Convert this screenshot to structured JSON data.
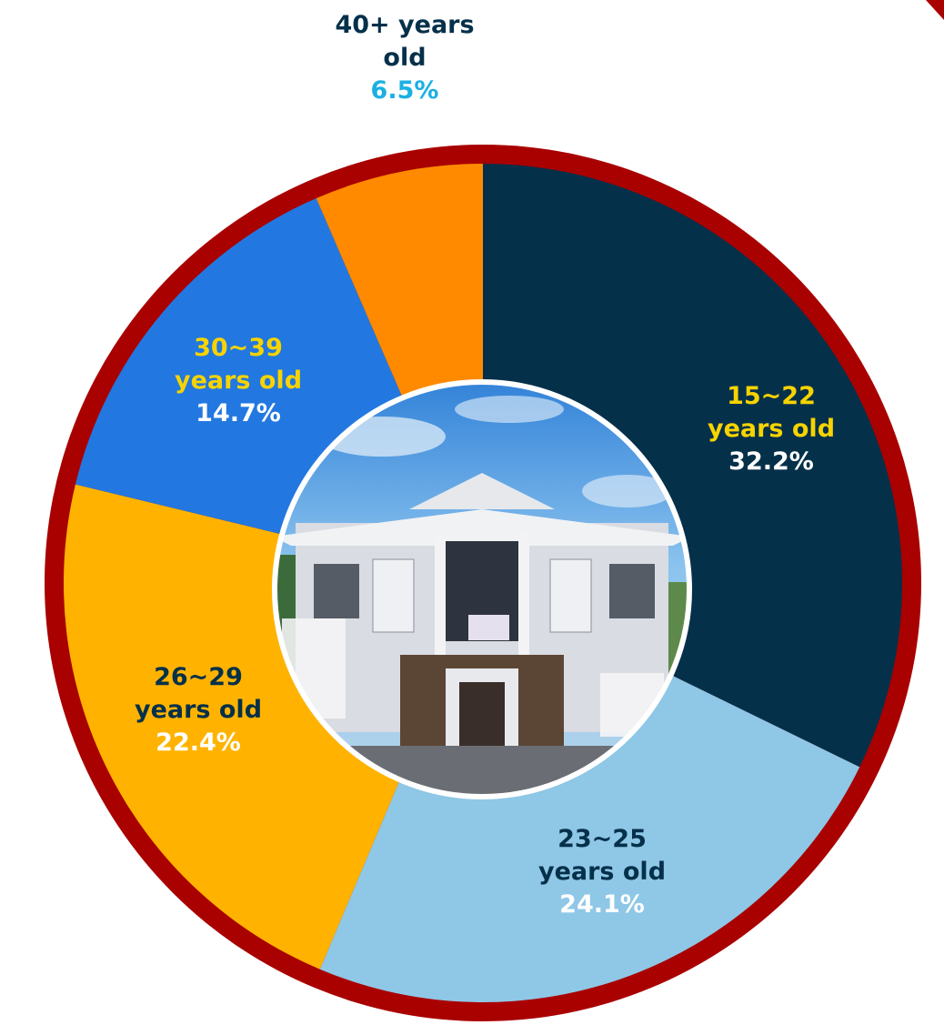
{
  "chart_data": {
    "type": "pie",
    "categories": [
      "15~22 years old",
      "23~25 years old",
      "26~29 years old",
      "30~39 years old",
      "40+ years old"
    ],
    "values": [
      32.2,
      24.1,
      22.4,
      14.7,
      6.5
    ],
    "value_labels": [
      "32.2%",
      "24.1%",
      "22.4%",
      "14.7%",
      "6.5%"
    ],
    "colors": [
      "#05304a",
      "#8fc7e6",
      "#ffb300",
      "#2278e0",
      "#ff8a00"
    ],
    "label_colors": [
      "#f7d300",
      "#05304a",
      "#05304a",
      "#f7d300",
      "#05304a"
    ],
    "value_label_colors": [
      "#ffffff",
      "#ffffff",
      "#ffffff",
      "#ffffff",
      "#1bb0e2"
    ]
  }
}
